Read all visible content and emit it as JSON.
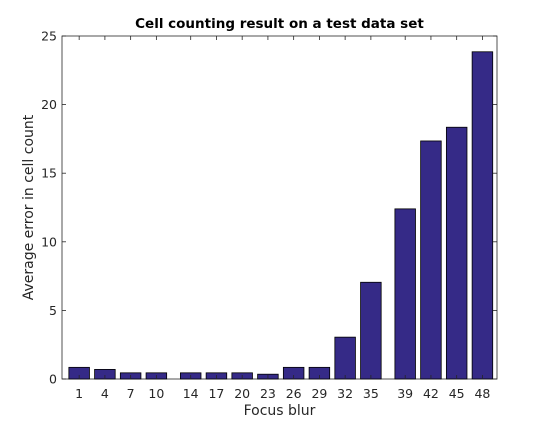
{
  "chart_data": {
    "type": "bar",
    "title": "Cell counting result on a test data set",
    "xlabel": "Focus blur",
    "ylabel": "Average error in cell count",
    "categories": [
      "1",
      "4",
      "7",
      "10",
      "14",
      "17",
      "20",
      "23",
      "26",
      "29",
      "32",
      "35",
      "39",
      "42",
      "45",
      "48"
    ],
    "x": [
      1,
      4,
      7,
      10,
      14,
      17,
      20,
      23,
      26,
      29,
      32,
      35,
      39,
      42,
      45,
      48
    ],
    "values": [
      0.85,
      0.7,
      0.45,
      0.45,
      0.45,
      0.45,
      0.45,
      0.35,
      0.85,
      0.85,
      3.05,
      7.05,
      12.4,
      17.35,
      18.35,
      23.85
    ],
    "xlim": [
      -1,
      49.7
    ],
    "ylim": [
      0,
      25
    ],
    "yticks": [
      0,
      5,
      10,
      15,
      20,
      25
    ],
    "grid": false,
    "colors": {
      "bar_fill": "#352a87",
      "bar_edge": "#000000"
    }
  }
}
